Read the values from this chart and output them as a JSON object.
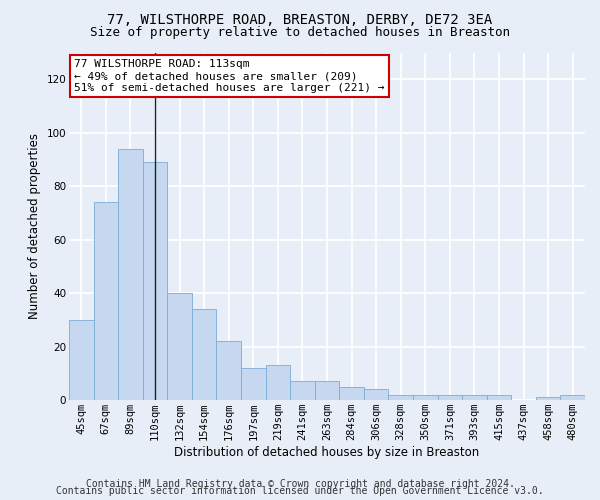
{
  "title1": "77, WILSTHORPE ROAD, BREASTON, DERBY, DE72 3EA",
  "title2": "Size of property relative to detached houses in Breaston",
  "xlabel": "Distribution of detached houses by size in Breaston",
  "ylabel": "Number of detached properties",
  "footer1": "Contains HM Land Registry data © Crown copyright and database right 2024.",
  "footer2": "Contains public sector information licensed under the Open Government Licence v3.0.",
  "bar_values": [
    30,
    74,
    94,
    89,
    40,
    34,
    22,
    12,
    13,
    7,
    7,
    5,
    4,
    2,
    2,
    2,
    2,
    2,
    0,
    1,
    2
  ],
  "categories": [
    "45sqm",
    "67sqm",
    "89sqm",
    "110sqm",
    "132sqm",
    "154sqm",
    "176sqm",
    "197sqm",
    "219sqm",
    "241sqm",
    "263sqm",
    "284sqm",
    "306sqm",
    "328sqm",
    "350sqm",
    "371sqm",
    "393sqm",
    "415sqm",
    "437sqm",
    "458sqm",
    "480sqm"
  ],
  "bar_color": "#c5d8f0",
  "bar_edge_color": "#7aadd4",
  "highlight_bar_index": 3,
  "highlight_line_color": "#222222",
  "ylim": [
    0,
    130
  ],
  "yticks": [
    0,
    20,
    40,
    60,
    80,
    100,
    120
  ],
  "annotation_text": "77 WILSTHORPE ROAD: 113sqm\n← 49% of detached houses are smaller (209)\n51% of semi-detached houses are larger (221) →",
  "annotation_box_color": "#ffffff",
  "annotation_box_edge": "#cc0000",
  "bg_color": "#e8eef8",
  "plot_bg_color": "#e8eef8",
  "grid_color": "#ffffff",
  "title_fontsize": 10,
  "subtitle_fontsize": 9,
  "axis_label_fontsize": 8.5,
  "tick_fontsize": 7.5,
  "annotation_fontsize": 8,
  "footer_fontsize": 7
}
